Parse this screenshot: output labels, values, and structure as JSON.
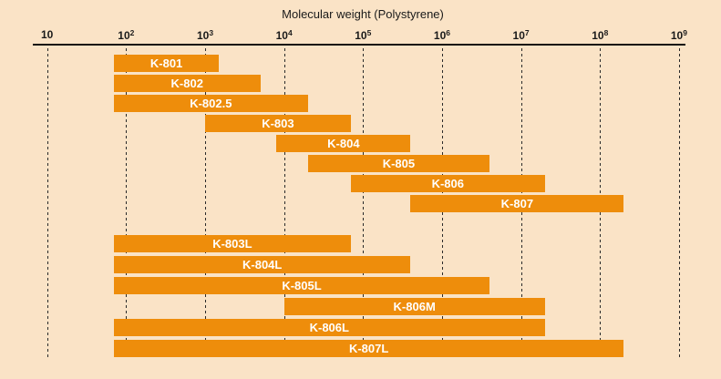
{
  "colors": {
    "background": "#FAE3C6",
    "bar": "#EE8D0B",
    "bar_label": "#FFFFFF",
    "axis": "#111111",
    "grid": "#2A2A2A"
  },
  "chart_data": {
    "type": "bar",
    "orientation": "horizontal-range",
    "xscale": "log",
    "xlabel": "Molecular weight (Polystyrene)",
    "xlim": [
      10,
      1000000000
    ],
    "tick_exponents": [
      1,
      2,
      3,
      4,
      5,
      6,
      7,
      8,
      9
    ],
    "grid": "vertical-dashed",
    "legend": "none",
    "bar_color": "#EE8D0B",
    "series": [
      {
        "group": "upper",
        "label": "K-801",
        "range": [
          70,
          1500
        ]
      },
      {
        "group": "upper",
        "label": "K-802",
        "range": [
          70,
          5000
        ]
      },
      {
        "group": "upper",
        "label": "K-802.5",
        "range": [
          70,
          20000
        ]
      },
      {
        "group": "upper",
        "label": "K-803",
        "range": [
          1000,
          70000
        ]
      },
      {
        "group": "upper",
        "label": "K-804",
        "range": [
          8000,
          400000
        ]
      },
      {
        "group": "upper",
        "label": "K-805",
        "range": [
          20000,
          4000000
        ]
      },
      {
        "group": "upper",
        "label": "K-806",
        "range": [
          70000,
          20000000
        ]
      },
      {
        "group": "upper",
        "label": "K-807",
        "range": [
          400000,
          200000000
        ]
      },
      {
        "group": "lower",
        "label": "K-803L",
        "range": [
          70,
          70000
        ]
      },
      {
        "group": "lower",
        "label": "K-804L",
        "range": [
          70,
          400000
        ]
      },
      {
        "group": "lower",
        "label": "K-805L",
        "range": [
          70,
          4000000
        ]
      },
      {
        "group": "lower",
        "label": "K-806M",
        "range": [
          10000,
          20000000
        ]
      },
      {
        "group": "lower",
        "label": "K-806L",
        "range": [
          70,
          20000000
        ]
      },
      {
        "group": "lower",
        "label": "K-807L",
        "range": [
          70,
          200000000
        ]
      }
    ]
  }
}
